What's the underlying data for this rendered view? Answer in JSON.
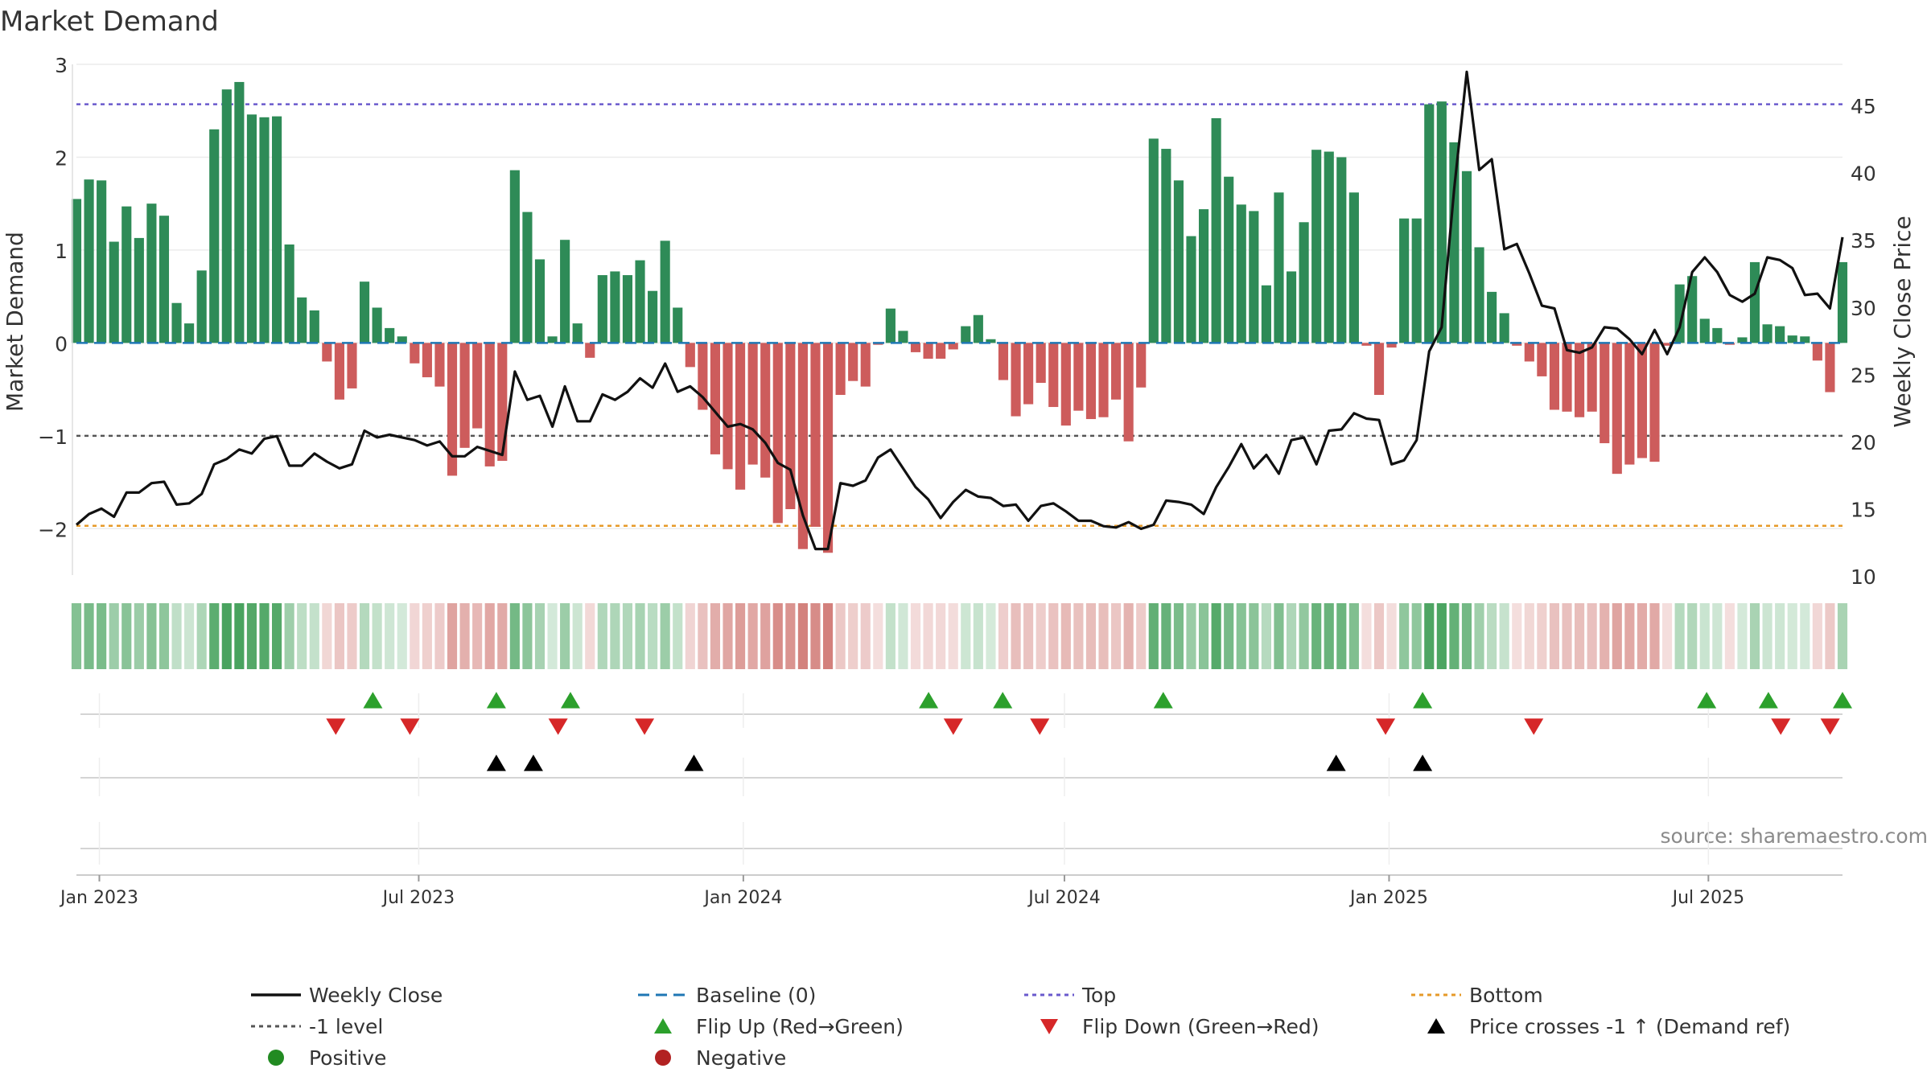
{
  "chart_data": {
    "type": "bar",
    "title": "Market Demand",
    "ylabel": "Market Demand",
    "y2label": "Weekly Close Price",
    "ylim": [
      -2.5,
      3.0
    ],
    "y2lim": [
      10,
      48
    ],
    "yticks": [
      3,
      2,
      1,
      0,
      -1,
      -2
    ],
    "ytick_labels": [
      "3",
      "2",
      "1",
      "0",
      "−1",
      "−2"
    ],
    "y2ticks": [
      45,
      40,
      35,
      30,
      25,
      20,
      15,
      10
    ],
    "date_range": [
      "2022-12-19",
      "2025-09-15"
    ],
    "xtick_dates": [
      "2023-01-01",
      "2023-07-01",
      "2024-01-01",
      "2024-07-01",
      "2025-01-01",
      "2025-07-01"
    ],
    "xtick_labels": [
      "Jan 2023",
      "Jul 2023",
      "Jan 2024",
      "Jul 2024",
      "Jan 2025",
      "Jul 2025"
    ],
    "reference_lines": {
      "baseline": 0,
      "top": 2.57,
      "bottom": -1.97,
      "minus_one": -1
    },
    "colors": {
      "positive_bar": "#2e8b57",
      "negative_bar": "#cd5c5c",
      "weekly_close": "#111111",
      "baseline": "#1f77b4",
      "top": "#6a5acd",
      "bottom": "#e69a28",
      "minus_one": "#555555",
      "flip_up": "#2ca02c",
      "flip_down": "#d62728",
      "price_cross": "#000000",
      "positive_dot": "#228b22",
      "negative_dot": "#b22222"
    },
    "series": [
      {
        "name": "Market Demand",
        "values": [
          1.55,
          1.76,
          1.75,
          1.09,
          1.47,
          1.13,
          1.5,
          1.37,
          0.43,
          0.21,
          0.78,
          2.3,
          2.73,
          2.81,
          2.46,
          2.43,
          2.44,
          1.06,
          0.49,
          0.35,
          -0.2,
          -0.61,
          -0.49,
          0.66,
          0.38,
          0.16,
          0.07,
          -0.22,
          -0.37,
          -0.47,
          -1.43,
          -1.13,
          -0.92,
          -1.33,
          -1.27,
          1.86,
          1.41,
          0.9,
          0.07,
          1.11,
          0.21,
          -0.16,
          0.73,
          0.77,
          0.73,
          0.89,
          0.56,
          1.1,
          0.38,
          -0.26,
          -0.72,
          -1.2,
          -1.36,
          -1.58,
          -1.31,
          -1.45,
          -1.94,
          -1.79,
          -2.22,
          -1.98,
          -2.26,
          -0.56,
          -0.41,
          -0.47,
          -0.02,
          0.37,
          0.13,
          -0.1,
          -0.17,
          -0.17,
          -0.07,
          0.18,
          0.3,
          0.04,
          -0.4,
          -0.79,
          -0.66,
          -0.43,
          -0.69,
          -0.89,
          -0.73,
          -0.82,
          -0.8,
          -0.61,
          -1.06,
          -0.48,
          2.2,
          2.09,
          1.75,
          1.15,
          1.44,
          2.42,
          1.79,
          1.49,
          1.42,
          0.62,
          1.62,
          0.77,
          1.3,
          2.08,
          2.06,
          2.0,
          1.62,
          -0.03,
          -0.56,
          -0.05,
          1.34,
          1.34,
          2.57,
          2.6,
          2.16,
          1.85,
          1.03,
          0.55,
          0.32,
          -0.03,
          -0.2,
          -0.36,
          -0.72,
          -0.74,
          -0.8,
          -0.74,
          -1.08,
          -1.41,
          -1.31,
          -1.24,
          -1.28,
          -0.03,
          0.63,
          0.72,
          0.26,
          0.16,
          -0.02,
          0.06,
          0.87,
          0.2,
          0.18,
          0.08,
          0.07,
          -0.19,
          -0.53,
          0.87
        ]
      },
      {
        "name": "Weekly Close",
        "axis": "right",
        "values": [
          13.8,
          14.6,
          15.0,
          14.4,
          16.2,
          16.2,
          16.9,
          17.0,
          15.3,
          15.4,
          16.1,
          18.3,
          18.7,
          19.4,
          19.1,
          20.2,
          20.4,
          18.2,
          18.2,
          19.1,
          18.5,
          18.0,
          18.3,
          20.8,
          20.3,
          20.5,
          20.3,
          20.1,
          19.7,
          20.0,
          18.9,
          18.9,
          19.6,
          19.3,
          19.0,
          25.2,
          23.1,
          23.4,
          21.1,
          24.1,
          21.5,
          21.5,
          23.5,
          23.1,
          23.7,
          24.7,
          24.0,
          25.8,
          23.7,
          24.1,
          23.3,
          22.2,
          21.1,
          21.3,
          20.9,
          19.9,
          18.4,
          17.9,
          14.5,
          12.0,
          12.0,
          16.9,
          16.7,
          17.1,
          18.8,
          19.4,
          18.0,
          16.6,
          15.7,
          14.3,
          15.5,
          16.4,
          15.9,
          15.8,
          15.2,
          15.3,
          14.1,
          15.2,
          15.4,
          14.8,
          14.1,
          14.1,
          13.7,
          13.6,
          14.0,
          13.5,
          13.8,
          15.6,
          15.5,
          15.3,
          14.6,
          16.6,
          18.1,
          19.8,
          18.0,
          19.0,
          17.6,
          20.1,
          20.3,
          18.3,
          20.8,
          20.9,
          22.1,
          21.7,
          21.6,
          18.3,
          18.6,
          20.1,
          26.7,
          28.5,
          38.8,
          47.5,
          40.2,
          41.0,
          34.3,
          34.7,
          32.5,
          30.1,
          29.9,
          26.8,
          26.6,
          27.0,
          28.5,
          28.4,
          27.6,
          26.5,
          28.3,
          26.5,
          28.5,
          32.6,
          33.7,
          32.6,
          30.9,
          30.4,
          31.0,
          33.7,
          33.5,
          32.9,
          30.9,
          31.0,
          29.9,
          35.2
        ]
      }
    ],
    "color_strip_label": "weekly demand color strip (same values as Market Demand series)",
    "signals": {
      "flip_up": [
        "2023-06-05",
        "2023-08-14",
        "2023-09-25",
        "2024-04-15",
        "2024-05-27",
        "2024-08-26",
        "2025-01-20",
        "2025-06-30",
        "2025-08-04",
        "2025-09-15"
      ],
      "flip_down": [
        "2023-05-15",
        "2023-06-26",
        "2023-09-18",
        "2023-11-06",
        "2024-04-29",
        "2024-06-17",
        "2024-12-30",
        "2025-03-24",
        "2025-08-11",
        "2025-09-08"
      ],
      "price_crosses": [
        "2023-08-14",
        "2023-09-04",
        "2023-12-04",
        "2024-12-02",
        "2025-01-20"
      ]
    },
    "legend_position": "bottom",
    "legend": [
      {
        "label": "Weekly Close",
        "marker": "solid-line",
        "color_key": "weekly_close"
      },
      {
        "label": "Baseline (0)",
        "marker": "dashed-line",
        "color_key": "baseline"
      },
      {
        "label": "Top",
        "marker": "dotted-line",
        "color_key": "top"
      },
      {
        "label": "Bottom",
        "marker": "dotted-line",
        "color_key": "bottom"
      },
      {
        "label": "-1 level",
        "marker": "dotted-line",
        "color_key": "minus_one"
      },
      {
        "label": "Flip Up (Red→Green)",
        "marker": "triangle-up",
        "color_key": "flip_up"
      },
      {
        "label": "Flip Down (Green→Red)",
        "marker": "triangle-down",
        "color_key": "flip_down"
      },
      {
        "label": "Price crosses -1 ↑ (Demand ref)",
        "marker": "triangle-up",
        "color_key": "price_cross"
      },
      {
        "label": "Positive",
        "marker": "dot",
        "color_key": "positive_dot"
      },
      {
        "label": "Negative",
        "marker": "dot",
        "color_key": "negative_dot"
      }
    ],
    "source": "source: sharemaestro.com"
  }
}
